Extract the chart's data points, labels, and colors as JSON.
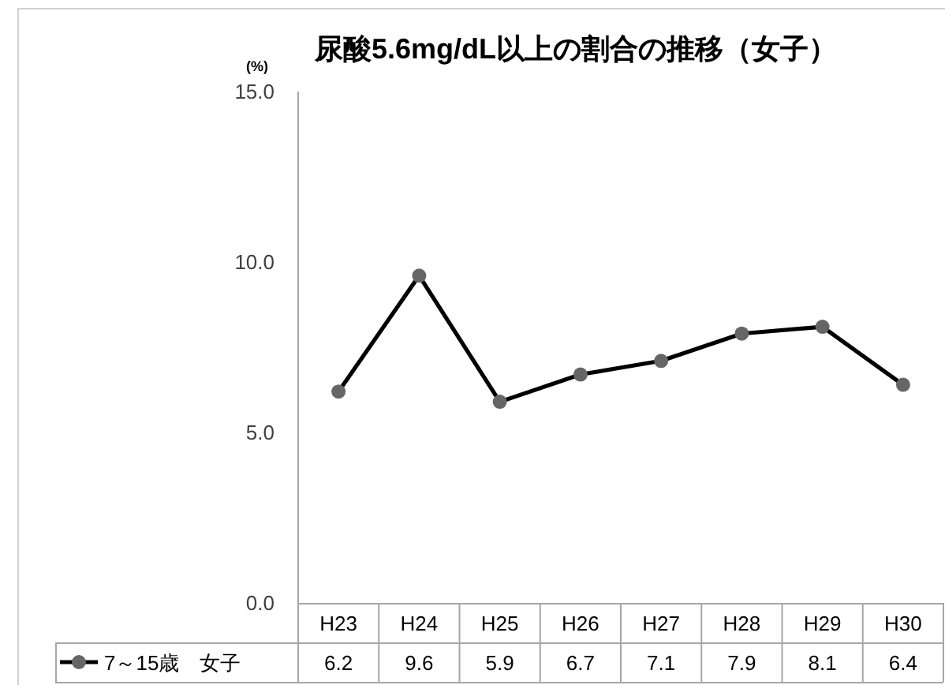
{
  "chart_data": {
    "type": "line",
    "title": "尿酸5.6mg/dL以上の割合の推移（女子）",
    "ylabel": "(%)",
    "categories": [
      "H23",
      "H24",
      "H25",
      "H26",
      "H27",
      "H28",
      "H29",
      "H30"
    ],
    "series": [
      {
        "name": "7～15歳　女子",
        "color": "#000000",
        "values": [
          6.2,
          9.6,
          5.9,
          6.7,
          7.1,
          7.9,
          8.1,
          6.4
        ]
      }
    ],
    "ylim": [
      0,
      15
    ],
    "yticks": [
      {
        "value": 0,
        "label": "0.0"
      },
      {
        "value": 5,
        "label": "5.0"
      },
      {
        "value": 10,
        "label": "10.0"
      },
      {
        "value": 15,
        "label": "15.0"
      }
    ],
    "legend": "bottom",
    "marker": "circle",
    "line_style": "solid",
    "data_labels": true
  }
}
